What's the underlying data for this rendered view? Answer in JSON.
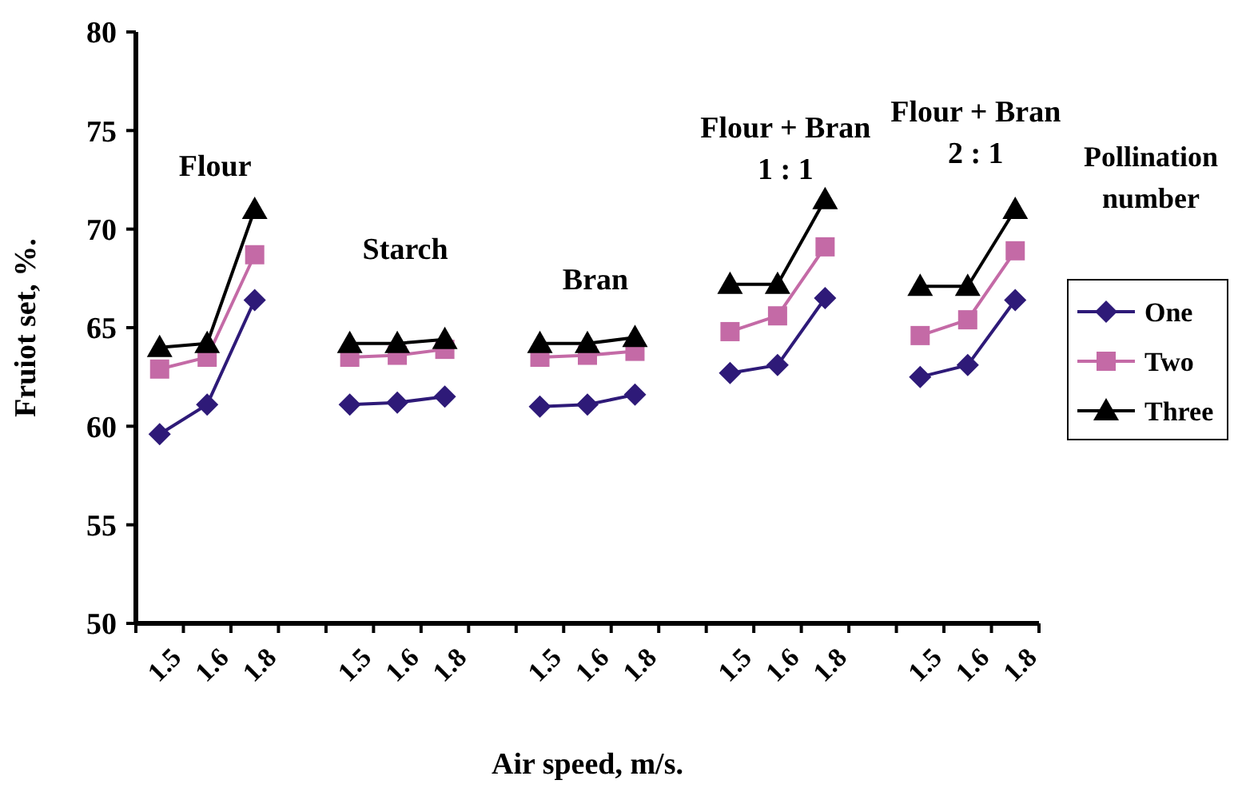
{
  "chart_data": {
    "type": "line",
    "xlabel": "Air speed, m/s.",
    "ylabel": "Fruiot set, %.",
    "legend_title": "Pollination number",
    "legend": "right",
    "categories": [
      "1.5",
      "1.6",
      "1.8",
      null,
      "1.5",
      "1.6",
      "1.8",
      null,
      "1.5",
      "1.6",
      "1.8",
      null,
      "1.5",
      "1.6",
      "1.8",
      null,
      "1.5",
      "1.6",
      "1.8"
    ],
    "ylim": [
      50,
      80
    ],
    "yticks": [
      50,
      55,
      60,
      65,
      70,
      75,
      80
    ],
    "annotations": [
      "Flour",
      "Starch",
      "Bran",
      "Flour + Bran\n1 : 1",
      "Flour + Bran\n2 : 1"
    ],
    "series": [
      {
        "name": "One",
        "color": "#2e1a78",
        "marker": "diamond",
        "values": [
          59.6,
          61.1,
          66.4,
          null,
          61.1,
          61.2,
          61.5,
          null,
          61.0,
          61.1,
          61.6,
          null,
          62.7,
          63.1,
          66.5,
          null,
          62.5,
          63.1,
          66.4
        ]
      },
      {
        "name": "Two",
        "color": "#c46aa6",
        "marker": "square",
        "values": [
          62.9,
          63.5,
          68.7,
          null,
          63.5,
          63.6,
          63.9,
          null,
          63.5,
          63.6,
          63.8,
          null,
          64.8,
          65.6,
          69.1,
          null,
          64.6,
          65.4,
          68.9
        ]
      },
      {
        "name": "Three",
        "color": "#000000",
        "marker": "triangle",
        "values": [
          64.0,
          64.2,
          71.0,
          null,
          64.2,
          64.2,
          64.4,
          null,
          64.2,
          64.2,
          64.5,
          null,
          67.2,
          67.2,
          71.5,
          null,
          67.1,
          67.1,
          71.0
        ]
      }
    ]
  }
}
